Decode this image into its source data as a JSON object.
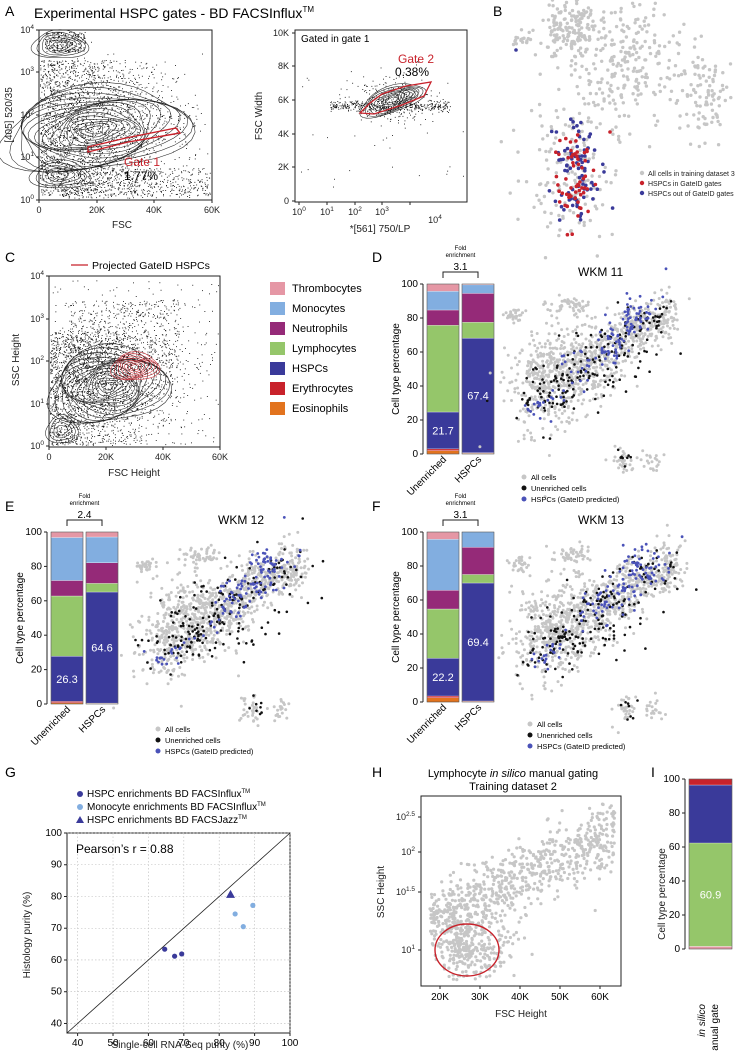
{
  "panels": {
    "A": {
      "letter": "A",
      "title": "Experimental HSPC gates - BD FACSInflux",
      "title_tm": "TM",
      "left": {
        "ylabel": "[405] 520/35",
        "xlabel": "FSC",
        "gate_label": "Gate 1",
        "gate_pct": "1.77%",
        "xticks": [
          "0",
          "20K",
          "40K",
          "60K"
        ],
        "yticks": [
          "10^0",
          "10^1",
          "10^2",
          "10^3",
          "10^4"
        ]
      },
      "right": {
        "inset": "Gated in gate 1",
        "ylabel": "FSC Width",
        "xlabel": "*[561] 750/LP",
        "gate_label": "Gate 2",
        "gate_pct": "0.38%",
        "xticks": [
          "10^0",
          "10^1",
          "10^2",
          "10^3",
          "10^4"
        ],
        "yticks": [
          "0",
          "2K",
          "4K",
          "6K",
          "8K",
          "10K"
        ]
      }
    },
    "B": {
      "letter": "B",
      "legend": [
        "All cells in training dataset 3",
        "HSPCs in GateID gates",
        "HSPCs out of GateID gates"
      ]
    },
    "C": {
      "letter": "C",
      "legend": "Projected GateID HSPCs",
      "ylabel": "SSC Height",
      "xlabel": "FSC Height",
      "xticks": [
        "0",
        "20K",
        "40K",
        "60K"
      ],
      "yticks": [
        "10^0",
        "10^1",
        "10^2",
        "10^3",
        "10^4"
      ]
    },
    "celltypes": [
      "Thrombocytes",
      "Monocytes",
      "Neutrophils",
      "Lymphocytes",
      "HSPCs",
      "Erythrocytes",
      "Eosinophils"
    ],
    "D": {
      "letter": "D",
      "fold_label": "Fold enrichment",
      "fold": "3.1",
      "umap_title": "WKM 11",
      "unenriched_label": "21.7",
      "hspc_label": "67.4"
    },
    "E": {
      "letter": "E",
      "fold_label": "Fold enrichment",
      "fold": "2.4",
      "umap_title": "WKM 12",
      "unenriched_label": "26.3",
      "hspc_label": "64.6"
    },
    "F": {
      "letter": "F",
      "fold_label": "Fold enrichment",
      "fold": "3.1",
      "umap_title": "WKM 13",
      "unenriched_label": "22.2",
      "hspc_label": "69.4"
    },
    "bar_axis": {
      "ylabel": "Cell type percentage",
      "yticks": [
        "0",
        "20",
        "40",
        "60",
        "80",
        "100"
      ],
      "cats": [
        "Unenriched",
        "HSPCs"
      ]
    },
    "umap_legend": [
      "All cells",
      "Unenriched cells",
      "HSPCs (GateID predicted)"
    ],
    "G": {
      "letter": "G",
      "legend": [
        "HSPC enrichments BD FACSInflux",
        "Monocyte enrichments BD FACSInflux",
        "HSPC enrichments BD FACSJazz"
      ],
      "tm": "TM",
      "annot": "Pearson’s r = 0.88",
      "xlabel": "Single-cell RNA-Seq purity (%)",
      "ylabel": "Histology purity (%)",
      "xticks": [
        "40",
        "50",
        "60",
        "70",
        "80",
        "90",
        "100"
      ],
      "yticks": [
        "40",
        "50",
        "60",
        "70",
        "80",
        "90",
        "100"
      ]
    },
    "H": {
      "letter": "H",
      "title1a": "Lymphocyte ",
      "title1b": "in silico",
      "title1c": " manual gating",
      "title2": "Training dataset 2",
      "ylabel": "SSC Height",
      "xlabel": "FSC Height",
      "xticks": [
        "20K",
        "30K",
        "40K",
        "50K",
        "60K"
      ],
      "yticks": [
        "10^1",
        "10^1.5",
        "10^2",
        "10^2.5"
      ]
    },
    "I": {
      "letter": "I",
      "ylabel": "Cell type percentage",
      "yticks": [
        "0",
        "20",
        "40",
        "60",
        "80",
        "100"
      ],
      "value_label": "60.9",
      "xcat1": "in silico",
      "xcat2": "manual gate"
    }
  },
  "colors": {
    "Thrombocytes": "#e597a5",
    "Monocytes": "#82aee0",
    "Neutrophils": "#952a78",
    "Lymphocytes": "#95c66a",
    "HSPCs": "#3a3a9a",
    "Erythrocytes": "#c8222b",
    "Eosinophils": "#e2731e",
    "gate": "#c8222b",
    "grey": "#c6c6c6"
  },
  "chart_data": [
    {
      "type": "bar",
      "panel": "D",
      "categories": [
        "Unenriched",
        "HSPCs"
      ],
      "ylim": [
        0,
        100
      ],
      "ylabel": "Cell type percentage",
      "series": [
        {
          "name": "Eosinophils",
          "values": [
            2,
            0.5
          ]
        },
        {
          "name": "Erythrocytes",
          "values": [
            1,
            0.3
          ]
        },
        {
          "name": "HSPCs",
          "values": [
            21.7,
            67.4
          ]
        },
        {
          "name": "Lymphocytes",
          "values": [
            51,
            9.3
          ]
        },
        {
          "name": "Neutrophils",
          "values": [
            9,
            17
          ]
        },
        {
          "name": "Monocytes",
          "values": [
            11,
            5
          ]
        },
        {
          "name": "Thrombocytes",
          "values": [
            4.3,
            0.5
          ]
        }
      ]
    },
    {
      "type": "bar",
      "panel": "E",
      "categories": [
        "Unenriched",
        "HSPCs"
      ],
      "ylim": [
        0,
        100
      ],
      "ylabel": "Cell type percentage",
      "series": [
        {
          "name": "Eosinophils",
          "values": [
            0.7,
            0.3
          ]
        },
        {
          "name": "Erythrocytes",
          "values": [
            0.8,
            0.2
          ]
        },
        {
          "name": "HSPCs",
          "values": [
            26.3,
            64.6
          ]
        },
        {
          "name": "Lymphocytes",
          "values": [
            35,
            5
          ]
        },
        {
          "name": "Neutrophils",
          "values": [
            9,
            12
          ]
        },
        {
          "name": "Monocytes",
          "values": [
            25,
            15
          ]
        },
        {
          "name": "Thrombocytes",
          "values": [
            3.2,
            2.9
          ]
        }
      ]
    },
    {
      "type": "bar",
      "panel": "F",
      "categories": [
        "Unenriched",
        "HSPCs"
      ],
      "ylim": [
        0,
        100
      ],
      "ylabel": "Cell type percentage",
      "series": [
        {
          "name": "Eosinophils",
          "values": [
            2.5,
            0.3
          ]
        },
        {
          "name": "Erythrocytes",
          "values": [
            1,
            0.3
          ]
        },
        {
          "name": "HSPCs",
          "values": [
            22.2,
            69.4
          ]
        },
        {
          "name": "Lymphocytes",
          "values": [
            29,
            5
          ]
        },
        {
          "name": "Neutrophils",
          "values": [
            11,
            16
          ]
        },
        {
          "name": "Monocytes",
          "values": [
            30,
            9
          ]
        },
        {
          "name": "Thrombocytes",
          "values": [
            4.3,
            0
          ]
        }
      ]
    },
    {
      "type": "scatter",
      "panel": "G",
      "xlabel": "Single-cell RNA-Seq purity (%)",
      "ylabel": "Histology purity (%)",
      "xlim": [
        37,
        100
      ],
      "ylim": [
        37,
        100
      ],
      "series": [
        {
          "name": "HSPC enrichments BD FACSInflux",
          "marker": "circle",
          "x": [
            64.6,
            67.4,
            69.4
          ],
          "y": [
            63.4,
            61.2,
            61.9
          ]
        },
        {
          "name": "Monocyte enrichments BD FACSInflux",
          "marker": "circle",
          "x": [
            84.5,
            86.8,
            89.5
          ],
          "y": [
            74.5,
            70.5,
            77.2
          ]
        },
        {
          "name": "HSPC enrichments BD FACSJazz",
          "marker": "triangle",
          "x": [
            83.2
          ],
          "y": [
            80.5
          ]
        }
      ],
      "annotation": "Pearson’s r = 0.88"
    },
    {
      "type": "bar",
      "panel": "I",
      "categories": [
        "in silico manual gate"
      ],
      "ylim": [
        0,
        100
      ],
      "ylabel": "Cell type percentage",
      "series": [
        {
          "name": "Thrombocytes",
          "values": [
            1.5
          ]
        },
        {
          "name": "Lymphocytes",
          "values": [
            60.9
          ]
        },
        {
          "name": "HSPCs",
          "values": [
            34.1
          ]
        },
        {
          "name": "Erythrocytes",
          "values": [
            3.5
          ]
        }
      ]
    }
  ]
}
